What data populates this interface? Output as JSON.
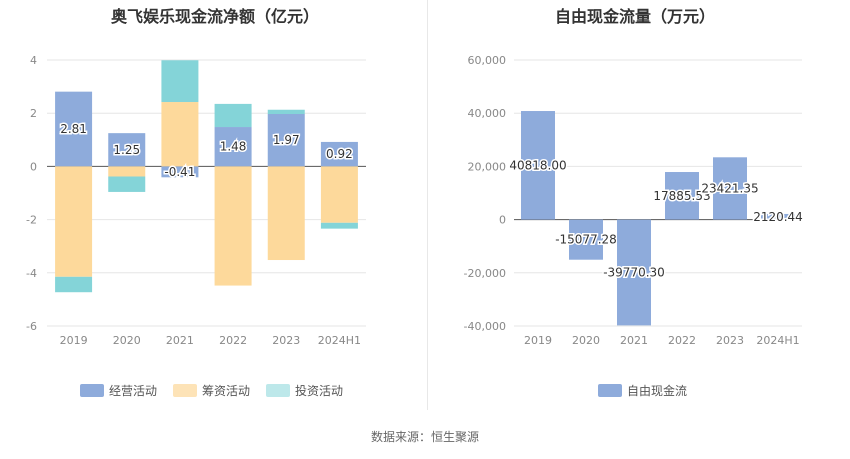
{
  "source_note": "数据来源：恒生聚源",
  "chart_data": [
    {
      "type": "bar",
      "stacked": true,
      "title": "奥飞娱乐现金流净额（亿元）",
      "categories": [
        "2019",
        "2020",
        "2021",
        "2022",
        "2023",
        "2024H1"
      ],
      "series": [
        {
          "name": "经营活动",
          "color": "#8eabdb",
          "values": [
            2.81,
            1.25,
            -0.41,
            1.48,
            1.97,
            0.92
          ]
        },
        {
          "name": "筹资活动",
          "color": "#fdd99b",
          "values": [
            -4.15,
            -0.38,
            2.42,
            -4.48,
            -3.52,
            -2.12
          ]
        },
        {
          "name": "投资活动",
          "color": "#84d4d8",
          "values": [
            -0.58,
            -0.58,
            1.57,
            0.87,
            0.16,
            -0.22
          ]
        }
      ],
      "data_labels": [
        "2.81",
        "1.25",
        "-0.41",
        "1.48",
        "1.97",
        "0.92"
      ],
      "yticks": [
        "4",
        "2",
        "0",
        "-2",
        "-4",
        "-6"
      ],
      "ylim": [
        -6,
        4
      ],
      "grid": true,
      "legend": "bottom"
    },
    {
      "type": "bar",
      "title": "自由现金流量（万元）",
      "categories": [
        "2019",
        "2020",
        "2021",
        "2022",
        "2023",
        "2024H1"
      ],
      "series": [
        {
          "name": "自由现金流",
          "color": "#8eabdb",
          "values": [
            40818.0,
            -15077.28,
            -39770.3,
            17885.53,
            23421.35,
            2120.44
          ]
        }
      ],
      "data_labels": [
        "40818.00",
        "-15077.28",
        "-39770.30",
        "17885.53",
        "23421.35",
        "2120.44"
      ],
      "yticks": [
        "60,000",
        "40,000",
        "20,000",
        "0",
        "-20,000",
        "-40,000"
      ],
      "ylim": [
        -40000,
        60000
      ],
      "grid": true,
      "legend": "bottom"
    }
  ]
}
